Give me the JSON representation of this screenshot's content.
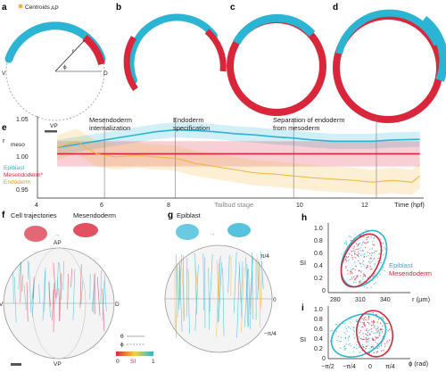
{
  "panels": {
    "a": {
      "label": "a",
      "legend_text": "Centroids",
      "ap": "AP",
      "vp": "VP",
      "v": "V",
      "d": "D",
      "r": "r",
      "phi": "ϕ"
    },
    "b": {
      "label": "b"
    },
    "c": {
      "label": "c"
    },
    "d": {
      "label": "d"
    },
    "e": {
      "label": "e",
      "ylabel_r": "r",
      "ylabel_sub": "meso",
      "y_ticks": [
        "1.05",
        "1.00",
        "0.95"
      ],
      "x_ticks": [
        "4",
        "6",
        "8",
        "10",
        "12"
      ],
      "xlabel": "Time (hpf)",
      "tailbud": "Tailbud stage",
      "annot_1": "Mesendoderm",
      "annot_1b": "internalization",
      "annot_2": "Endoderm",
      "annot_2b": "specification",
      "annot_3": "Separation of endoderm",
      "annot_3b": "from mesoderm",
      "legend": [
        {
          "name": "Epiblast",
          "color": "#2bb4d4"
        },
        {
          "name": "Mesendoderm*",
          "color": "#d9263a"
        },
        {
          "name": "Endoderm",
          "color": "#f2b43a"
        }
      ]
    },
    "f": {
      "label": "f",
      "title_1": "Cell trajectories",
      "title_2": "Mesendoderm",
      "ap": "AP",
      "vp": "VP",
      "v": "V",
      "d": "D",
      "legend_theta": "θ",
      "legend_phi": "ϕ",
      "si_label": "SI",
      "si_min": "0",
      "si_max": "1"
    },
    "g": {
      "label": "g",
      "title": "Epiblast",
      "pi4": "π/4",
      "zero": "0",
      "mpi4": "−π/4"
    },
    "h": {
      "label": "h",
      "ylabel": "SI",
      "xlabel": "r (µm)",
      "x_ticks": [
        "280",
        "310",
        "340"
      ],
      "y_ticks": [
        "1.0",
        "0.8",
        "0.6",
        "0.4",
        "0.2",
        "0"
      ],
      "legend_1": "Epiblast",
      "legend_2": "Mesendoderm"
    },
    "i": {
      "label": "i",
      "ylabel": "SI",
      "xlabel": "ϕ (rad)",
      "x_ticks": [
        "−π/2",
        "−π/4",
        "0",
        "π/4"
      ],
      "y_ticks": [
        "1.0",
        "0.8",
        "0.6",
        "0.4",
        "0.2",
        "0"
      ]
    }
  },
  "colors": {
    "epiblast": "#2bb4d4",
    "mesendoderm": "#d9263a",
    "endoderm": "#f2b43a",
    "grey": "#999999"
  },
  "chart_data": [
    {
      "type": "line",
      "panel": "e",
      "xlabel": "Time (hpf)",
      "ylabel": "r/r_meso",
      "xlim": [
        3.5,
        13.3
      ],
      "ylim": [
        0.93,
        1.06
      ],
      "series": [
        {
          "name": "Epiblast",
          "x": [
            4,
            4.5,
            5,
            5.5,
            6,
            6.5,
            7,
            7.5,
            8,
            8.5,
            9,
            9.5,
            10,
            10.5,
            11,
            11.5,
            12,
            12.5,
            13.2
          ],
          "y": [
            1.01,
            1.015,
            1.02,
            1.025,
            1.03,
            1.035,
            1.038,
            1.037,
            1.035,
            1.032,
            1.03,
            1.027,
            1.025,
            1.022,
            1.02,
            1.02,
            1.02,
            1.022,
            1.023
          ]
        },
        {
          "name": "Mesendoderm*",
          "x": [
            4,
            13.2
          ],
          "y": [
            1.0,
            1.0
          ]
        },
        {
          "name": "Endoderm",
          "x": [
            4,
            4.5,
            5,
            5.5,
            6,
            6.5,
            7,
            7.2,
            7.5,
            8,
            8.5,
            9,
            9.5,
            10,
            10.5,
            11,
            11.5,
            12,
            12.5,
            13,
            13.2
          ],
          "y": [
            1.01,
            1.02,
            1.0,
            0.995,
            0.998,
            0.995,
            0.993,
            0.99,
            0.985,
            0.98,
            0.975,
            0.97,
            0.968,
            0.965,
            0.962,
            0.96,
            0.958,
            0.955,
            0.958,
            0.955,
            0.965
          ]
        }
      ]
    }
  ]
}
